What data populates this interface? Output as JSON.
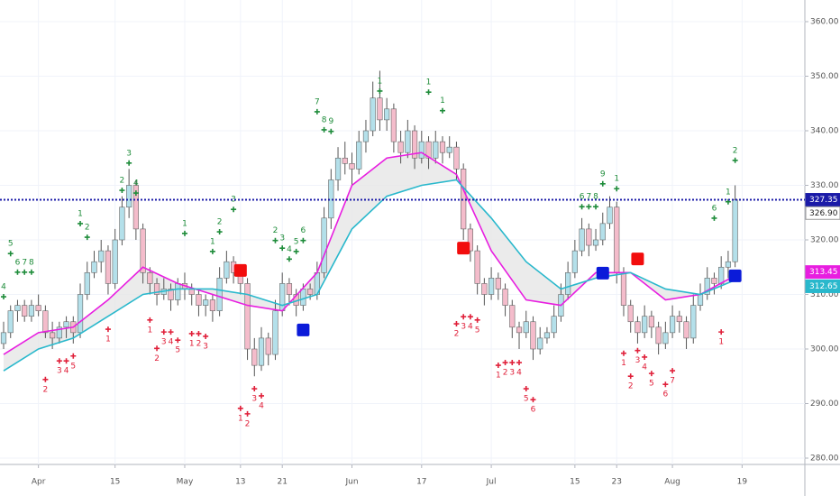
{
  "chart_data": {
    "type": "candlestick",
    "ylim": [
      280,
      360
    ],
    "yticks": [
      {
        "value": 280,
        "label": "280.00"
      },
      {
        "value": 290,
        "label": "290.00"
      },
      {
        "value": 300,
        "label": "300.00"
      },
      {
        "value": 310,
        "label": "310.00"
      },
      {
        "value": 320,
        "label": "320.00"
      },
      {
        "value": 330,
        "label": "330.00"
      },
      {
        "value": 340,
        "label": "340.00"
      },
      {
        "value": 350,
        "label": "350.00"
      },
      {
        "value": 360,
        "label": "360.00"
      }
    ],
    "grid": true,
    "up_color": "#b4e0ea",
    "down_color": "#f4bccb",
    "x_labels": [
      {
        "i": 5,
        "label": "Apr"
      },
      {
        "i": 16,
        "label": "15"
      },
      {
        "i": 26,
        "label": "May"
      },
      {
        "i": 34,
        "label": "13"
      },
      {
        "i": 40,
        "label": "21"
      },
      {
        "i": 50,
        "label": "Jun"
      },
      {
        "i": 60,
        "label": "17"
      },
      {
        "i": 70,
        "label": "Jul"
      },
      {
        "i": 82,
        "label": "15"
      },
      {
        "i": 88,
        "label": "23"
      },
      {
        "i": 96,
        "label": "Aug"
      },
      {
        "i": 106,
        "label": "19"
      }
    ],
    "candles": [
      [
        301,
        305,
        300,
        303
      ],
      [
        303,
        308,
        302,
        307
      ],
      [
        307,
        309,
        305,
        308
      ],
      [
        308,
        309,
        305,
        306
      ],
      [
        306,
        309,
        305,
        308
      ],
      [
        308,
        310,
        306,
        307
      ],
      [
        307,
        308,
        302,
        303
      ],
      [
        303,
        305,
        300,
        302
      ],
      [
        302,
        305,
        301,
        304
      ],
      [
        304,
        306,
        302,
        305
      ],
      [
        305,
        306,
        301,
        303
      ],
      [
        303,
        312,
        302,
        310
      ],
      [
        310,
        316,
        309,
        314
      ],
      [
        314,
        318,
        313,
        316
      ],
      [
        316,
        320,
        314,
        318
      ],
      [
        318,
        319,
        310,
        312
      ],
      [
        312,
        322,
        311,
        320
      ],
      [
        320,
        328,
        319,
        326
      ],
      [
        326,
        333,
        324,
        330
      ],
      [
        330,
        331,
        320,
        322
      ],
      [
        322,
        323,
        312,
        314
      ],
      [
        314,
        315,
        310,
        312
      ],
      [
        312,
        313,
        308,
        310
      ],
      [
        310,
        313,
        309,
        311
      ],
      [
        311,
        312,
        307,
        309
      ],
      [
        309,
        313,
        308,
        312
      ],
      [
        312,
        314,
        309,
        311
      ],
      [
        311,
        312,
        308,
        310
      ],
      [
        310,
        311,
        306,
        308
      ],
      [
        308,
        310,
        306,
        309
      ],
      [
        309,
        310,
        305,
        307
      ],
      [
        307,
        315,
        306,
        313
      ],
      [
        313,
        318,
        312,
        316
      ],
      [
        316,
        317,
        312,
        314
      ],
      [
        314,
        315,
        310,
        312
      ],
      [
        312,
        313,
        298,
        300
      ],
      [
        300,
        302,
        295,
        297
      ],
      [
        297,
        304,
        296,
        302
      ],
      [
        302,
        303,
        297,
        299
      ],
      [
        299,
        309,
        298,
        307
      ],
      [
        307,
        314,
        306,
        312
      ],
      [
        312,
        313,
        308,
        310
      ],
      [
        310,
        311,
        306,
        308
      ],
      [
        308,
        312,
        307,
        311
      ],
      [
        311,
        312,
        309,
        310
      ],
      [
        310,
        316,
        309,
        314
      ],
      [
        314,
        326,
        313,
        324
      ],
      [
        324,
        333,
        322,
        331
      ],
      [
        331,
        337,
        329,
        335
      ],
      [
        335,
        338,
        332,
        334
      ],
      [
        334,
        336,
        330,
        333
      ],
      [
        333,
        340,
        332,
        338
      ],
      [
        338,
        342,
        336,
        340
      ],
      [
        340,
        349,
        339,
        346
      ],
      [
        346,
        351,
        340,
        342
      ],
      [
        342,
        346,
        340,
        344
      ],
      [
        344,
        345,
        336,
        338
      ],
      [
        338,
        340,
        334,
        336
      ],
      [
        336,
        342,
        335,
        340
      ],
      [
        340,
        341,
        333,
        335
      ],
      [
        335,
        340,
        334,
        338
      ],
      [
        338,
        339,
        333,
        335
      ],
      [
        335,
        340,
        334,
        338
      ],
      [
        338,
        339,
        334,
        336
      ],
      [
        336,
        339,
        335,
        337
      ],
      [
        337,
        338,
        331,
        333
      ],
      [
        333,
        334,
        320,
        322
      ],
      [
        322,
        323,
        316,
        318
      ],
      [
        318,
        319,
        310,
        312
      ],
      [
        312,
        313,
        308,
        310
      ],
      [
        310,
        315,
        309,
        313
      ],
      [
        313,
        314,
        309,
        311
      ],
      [
        311,
        312,
        306,
        308
      ],
      [
        308,
        309,
        302,
        304
      ],
      [
        304,
        305,
        300,
        303
      ],
      [
        303,
        307,
        302,
        305
      ],
      [
        305,
        306,
        298,
        300
      ],
      [
        300,
        304,
        299,
        302
      ],
      [
        302,
        304,
        301,
        303
      ],
      [
        303,
        308,
        302,
        306
      ],
      [
        306,
        312,
        305,
        310
      ],
      [
        310,
        316,
        309,
        314
      ],
      [
        314,
        320,
        313,
        318
      ],
      [
        318,
        324,
        317,
        322
      ],
      [
        322,
        323,
        317,
        319
      ],
      [
        319,
        322,
        318,
        320
      ],
      [
        320,
        325,
        319,
        323
      ],
      [
        323,
        328,
        322,
        326
      ],
      [
        326,
        327,
        312,
        314
      ],
      [
        314,
        315,
        306,
        308
      ],
      [
        308,
        309,
        303,
        305
      ],
      [
        305,
        306,
        301,
        303
      ],
      [
        303,
        308,
        302,
        306
      ],
      [
        306,
        307,
        302,
        304
      ],
      [
        304,
        305,
        299,
        301
      ],
      [
        301,
        305,
        300,
        303
      ],
      [
        303,
        308,
        302,
        306
      ],
      [
        306,
        307,
        303,
        305
      ],
      [
        305,
        306,
        300,
        302
      ],
      [
        302,
        310,
        301,
        308
      ],
      [
        308,
        312,
        307,
        310
      ],
      [
        310,
        315,
        309,
        313
      ],
      [
        313,
        314,
        310,
        312
      ],
      [
        312,
        317,
        311,
        315
      ],
      [
        315,
        318,
        313,
        316
      ],
      [
        316,
        330,
        315,
        327.35
      ]
    ],
    "series": [
      {
        "color": "#e81ee0",
        "x": [
          0,
          5,
          10,
          15,
          20,
          25,
          30,
          35,
          40,
          45,
          50,
          55,
          60,
          65,
          70,
          75,
          80,
          85,
          90,
          95,
          100,
          105
        ],
        "values": [
          299,
          303,
          304,
          309,
          315,
          312,
          310,
          308,
          307,
          314,
          330,
          335,
          336,
          332,
          318,
          309,
          308,
          314,
          314,
          309,
          310,
          313.45
        ]
      },
      {
        "color": "#29b8cc",
        "x": [
          0,
          5,
          10,
          15,
          20,
          25,
          30,
          35,
          40,
          45,
          50,
          55,
          60,
          65,
          70,
          75,
          80,
          85,
          90,
          95,
          100,
          105
        ],
        "values": [
          296,
          300,
          302,
          306,
          310,
          311,
          311,
          310,
          308,
          310,
          322,
          328,
          330,
          331,
          324,
          316,
          311,
          313,
          314,
          311,
          310,
          312.65
        ]
      }
    ],
    "band_color": "#e6e6e6",
    "buy_counts": [
      {
        "i": 0,
        "price": 311.4,
        "text": "4"
      },
      {
        "i": 1,
        "price": 319.3,
        "text": "5"
      },
      {
        "i": 2,
        "price": 315.9,
        "text": "6"
      },
      {
        "i": 3,
        "price": 315.9,
        "text": "7"
      },
      {
        "i": 4,
        "price": 315.9,
        "text": "8"
      },
      {
        "i": 11,
        "price": 324.8,
        "text": "1"
      },
      {
        "i": 12,
        "price": 322.3,
        "text": "2"
      },
      {
        "i": 17,
        "price": 330.9,
        "text": "2"
      },
      {
        "i": 18,
        "price": 335.9,
        "text": "3"
      },
      {
        "i": 19,
        "price": 330.4,
        "text": "4"
      },
      {
        "i": 26,
        "price": 323,
        "text": "1"
      },
      {
        "i": 30,
        "price": 319.7,
        "text": "1"
      },
      {
        "i": 31,
        "price": 323.3,
        "text": "2"
      },
      {
        "i": 33,
        "price": 327.4,
        "text": "3"
      },
      {
        "i": 39,
        "price": 321.7,
        "text": "2"
      },
      {
        "i": 40,
        "price": 320.3,
        "text": "3"
      },
      {
        "i": 41,
        "price": 318.3,
        "text": "4"
      },
      {
        "i": 42,
        "price": 319.7,
        "text": "5"
      },
      {
        "i": 43,
        "price": 321.7,
        "text": "6"
      },
      {
        "i": 45,
        "price": 345.3,
        "text": "7"
      },
      {
        "i": 46,
        "price": 342,
        "text": "8"
      },
      {
        "i": 47,
        "price": 341.7,
        "text": "9"
      },
      {
        "i": 54,
        "price": 349.1,
        "text": "1"
      },
      {
        "i": 61,
        "price": 348.9,
        "text": "1"
      },
      {
        "i": 63,
        "price": 345.5,
        "text": "1"
      },
      {
        "i": 83,
        "price": 327.9,
        "text": "6"
      },
      {
        "i": 84,
        "price": 327.9,
        "text": "7"
      },
      {
        "i": 85,
        "price": 327.9,
        "text": "8"
      },
      {
        "i": 86,
        "price": 332.1,
        "text": "9"
      },
      {
        "i": 88,
        "price": 331.2,
        "text": "1"
      },
      {
        "i": 102,
        "price": 325.8,
        "text": "6"
      },
      {
        "i": 104,
        "price": 328.8,
        "text": "1"
      },
      {
        "i": 105,
        "price": 336.4,
        "text": "2"
      }
    ],
    "buy_color": "#1e8c3a",
    "sell_counts": [
      {
        "i": 6,
        "price": 292.6,
        "text": "2"
      },
      {
        "i": 8,
        "price": 296,
        "text": "3"
      },
      {
        "i": 9,
        "price": 296,
        "text": "4"
      },
      {
        "i": 10,
        "price": 296.9,
        "text": "5"
      },
      {
        "i": 15,
        "price": 301.8,
        "text": "1"
      },
      {
        "i": 21,
        "price": 303.5,
        "text": "1"
      },
      {
        "i": 22,
        "price": 298.3,
        "text": "2"
      },
      {
        "i": 23,
        "price": 301.3,
        "text": "3"
      },
      {
        "i": 24,
        "price": 301.3,
        "text": "4"
      },
      {
        "i": 25,
        "price": 299.8,
        "text": "5"
      },
      {
        "i": 27,
        "price": 301,
        "text": "1"
      },
      {
        "i": 28,
        "price": 301,
        "text": "2"
      },
      {
        "i": 29,
        "price": 300.5,
        "text": "3"
      },
      {
        "i": 34,
        "price": 287.3,
        "text": "1"
      },
      {
        "i": 35,
        "price": 286.3,
        "text": "2"
      },
      {
        "i": 36,
        "price": 290.9,
        "text": "3"
      },
      {
        "i": 37,
        "price": 289.6,
        "text": "4"
      },
      {
        "i": 65,
        "price": 302.8,
        "text": "2"
      },
      {
        "i": 66,
        "price": 304.1,
        "text": "3"
      },
      {
        "i": 67,
        "price": 304.1,
        "text": "4"
      },
      {
        "i": 68,
        "price": 303.5,
        "text": "5"
      },
      {
        "i": 71,
        "price": 295.2,
        "text": "1"
      },
      {
        "i": 72,
        "price": 295.7,
        "text": "2"
      },
      {
        "i": 73,
        "price": 295.7,
        "text": "3"
      },
      {
        "i": 74,
        "price": 295.7,
        "text": "4"
      },
      {
        "i": 75,
        "price": 290.9,
        "text": "5"
      },
      {
        "i": 76,
        "price": 288.9,
        "text": "6"
      },
      {
        "i": 89,
        "price": 297.4,
        "text": "1"
      },
      {
        "i": 90,
        "price": 293.2,
        "text": "2"
      },
      {
        "i": 91,
        "price": 297.9,
        "text": "3"
      },
      {
        "i": 92,
        "price": 296.7,
        "text": "4"
      },
      {
        "i": 93,
        "price": 293.7,
        "text": "5"
      },
      {
        "i": 95,
        "price": 291.7,
        "text": "6"
      },
      {
        "i": 96,
        "price": 294.2,
        "text": "7"
      },
      {
        "i": 103,
        "price": 301.3,
        "text": "1"
      }
    ],
    "sell_color": "#e0203a",
    "sell_signals": [
      {
        "i": 34,
        "price": 314.4
      },
      {
        "i": 66,
        "price": 318.5
      },
      {
        "i": 91,
        "price": 316.5
      }
    ],
    "buy_signals": [
      {
        "i": 43,
        "price": 303.5
      },
      {
        "i": 86,
        "price": 313.9
      },
      {
        "i": 105,
        "price": 313.4
      }
    ],
    "price_labels": [
      {
        "value": 327.35,
        "label": "327.35",
        "color": "#1b1ba8"
      },
      {
        "value": 326.9,
        "label": "326.90",
        "color": "#ffffff"
      },
      {
        "value": 313.45,
        "label": "313.45",
        "color": "#e81ee0"
      },
      {
        "value": 312.65,
        "label": "312.65",
        "color": "#29b8cc"
      }
    ]
  }
}
